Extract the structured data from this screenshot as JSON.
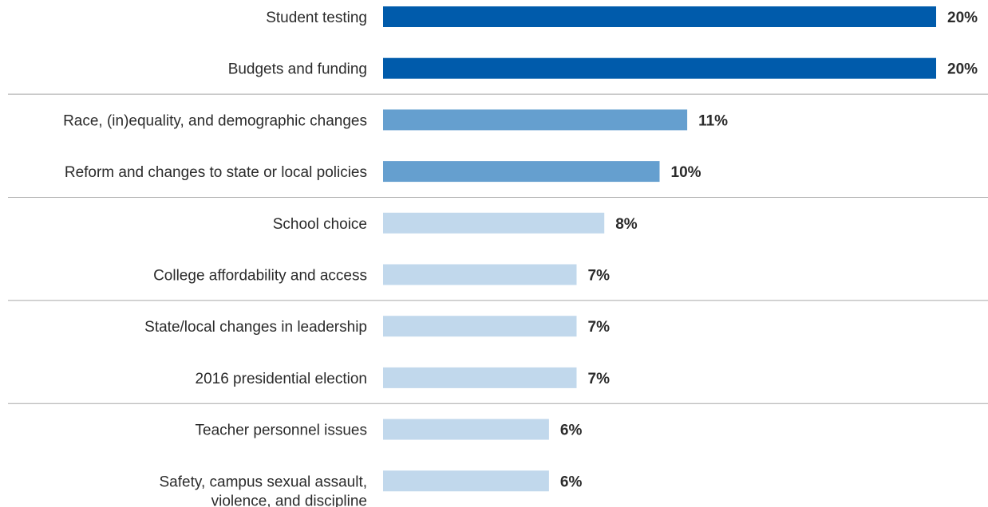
{
  "chart_data": {
    "type": "bar",
    "orientation": "horizontal",
    "categories": [
      [
        "Student testing"
      ],
      [
        "Budgets and funding"
      ],
      [
        "Race, (in)equality, and demographic changes"
      ],
      [
        "Reform and changes to state or local policies"
      ],
      [
        "School choice"
      ],
      [
        "College affordability and access"
      ],
      [
        "State/local changes in leadership"
      ],
      [
        "2016 presidential election"
      ],
      [
        "Teacher personnel issues"
      ],
      [
        "Safety, campus sexual assault,",
        "violence, and discipline"
      ]
    ],
    "values": [
      20,
      20,
      11,
      10,
      8,
      7,
      7,
      7,
      6,
      6
    ],
    "value_labels": [
      "20%",
      "20%",
      "11%",
      "10%",
      "8%",
      "7%",
      "7%",
      "7%",
      "6%",
      "6%"
    ],
    "tiers": [
      1,
      1,
      2,
      2,
      3,
      3,
      3,
      3,
      3,
      3
    ],
    "tier_colors": {
      "1": "#005bab",
      "2": "#659fcf",
      "3": "#c1d8ec"
    },
    "xlim": [
      0,
      20
    ],
    "title": "",
    "xlabel": "",
    "ylabel": "",
    "grid": false,
    "legend": "none"
  }
}
